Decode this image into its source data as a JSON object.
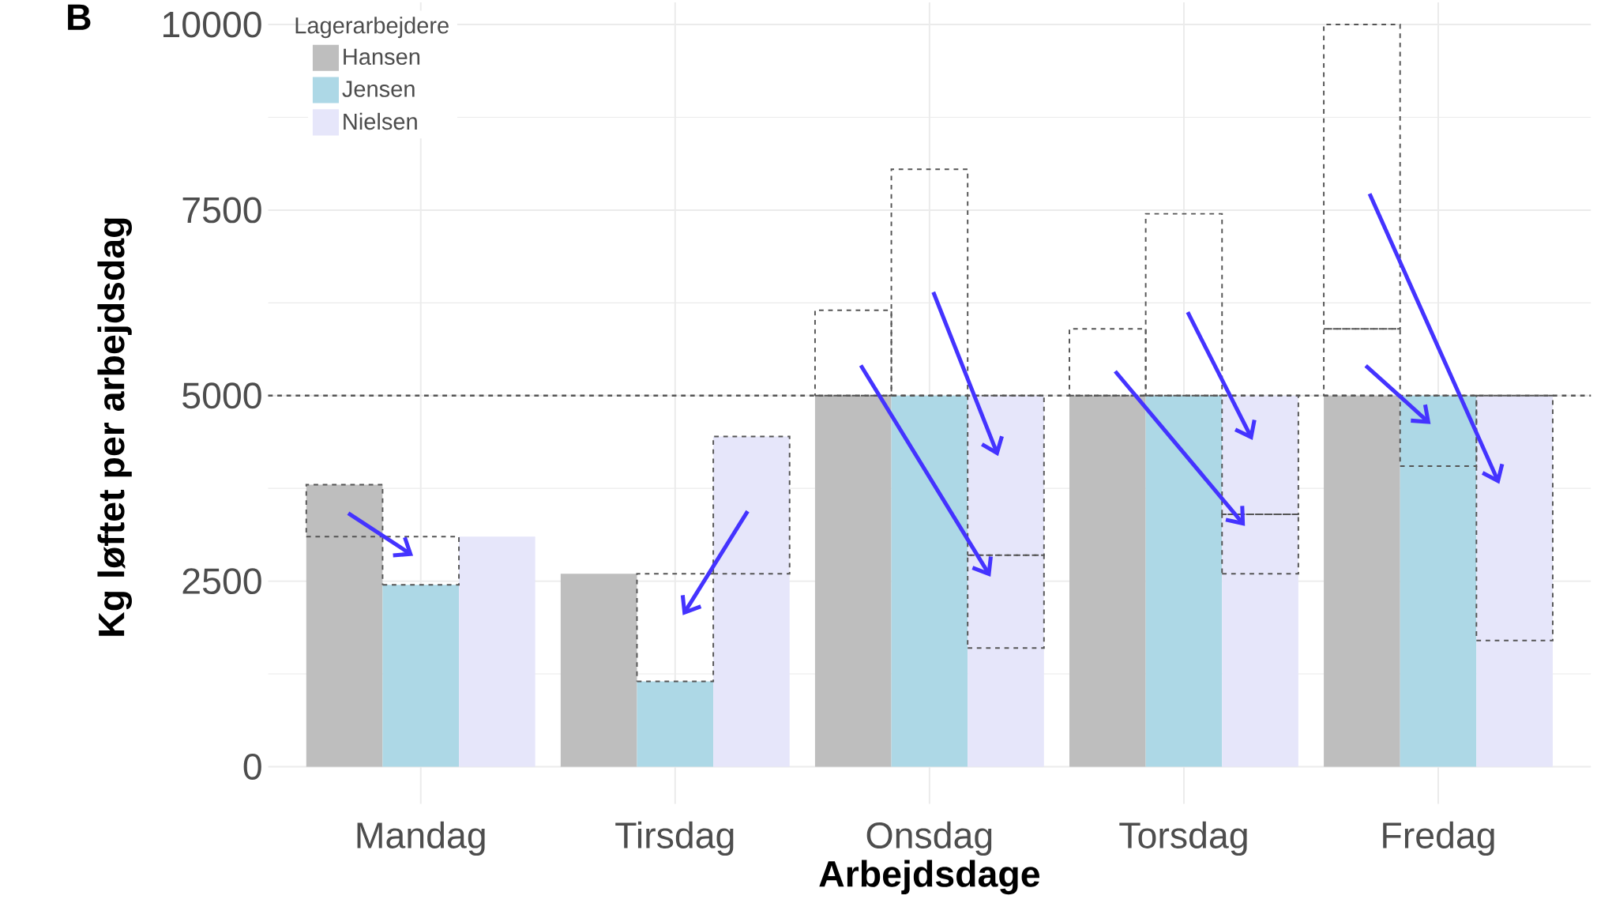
{
  "chart_data": {
    "type": "bar",
    "title": "B",
    "xlabel": "Arbejdsdage",
    "ylabel": "Kg løftet per arbejdsdag",
    "legend_title": "Lagerarbejdere",
    "categories": [
      "Mandag",
      "Tirsdag",
      "Onsdag",
      "Torsdag",
      "Fredag"
    ],
    "series": [
      {
        "name": "Hansen",
        "color": "#bebebe",
        "values": [
          3800,
          2600,
          5000,
          5000,
          5000
        ]
      },
      {
        "name": "Jensen",
        "color": "#add8e6",
        "values": [
          2450,
          1150,
          5000,
          5000,
          5000
        ]
      },
      {
        "name": "Nielsen",
        "color": "#e6e6fa",
        "values": [
          3100,
          4450,
          5000,
          5000,
          5000
        ]
      },
      {
        "color": "#555555",
        "line_style": "dashed",
        "base": [
          3100,
          null,
          5000,
          5000,
          5000
        ],
        "values": [
          700,
          null,
          1150,
          900,
          900
        ]
      },
      {
        "color": "#555555",
        "line_style": "dashed",
        "base": [
          null,
          null,
          null,
          null,
          5900
        ],
        "values": [
          null,
          null,
          null,
          null,
          4100
        ]
      },
      {
        "color": "#555555",
        "line_style": "dashed",
        "base": [
          2450,
          1150,
          5000,
          5000,
          4050
        ],
        "values": [
          650,
          1450,
          3050,
          2450,
          950
        ]
      },
      {
        "color": "#555555",
        "line_style": "dashed",
        "base": [
          null,
          2600,
          1600,
          2600,
          1700
        ],
        "values": [
          null,
          1850,
          1250,
          800,
          3300
        ]
      },
      {
        "color": "#555555",
        "line_style": "dashed",
        "base": [
          null,
          null,
          2850,
          3400,
          null
        ],
        "values": [
          null,
          null,
          2150,
          1600,
          null
        ]
      }
    ],
    "ylim": [
      -500,
      10300
    ],
    "yticks": [
      0,
      2500,
      5000,
      7500,
      10000
    ],
    "grid": true,
    "legend": "top left",
    "ref_lines": [
      {
        "axis": "y",
        "value": 5000,
        "color": "#555555",
        "line_style": "dashed"
      }
    ]
  }
}
